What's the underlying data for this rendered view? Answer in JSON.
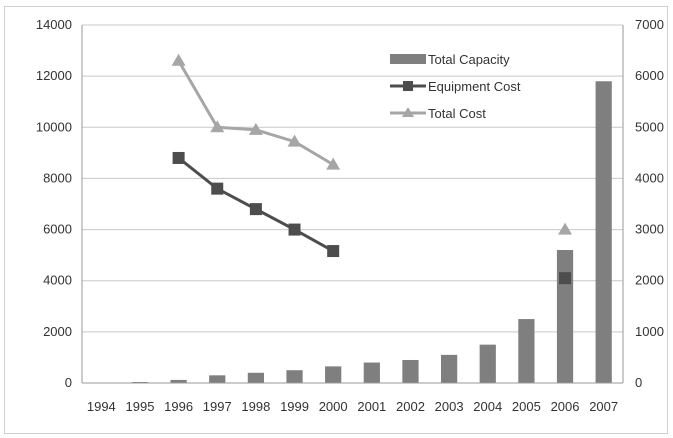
{
  "chart_data": {
    "type": "bar",
    "categories": [
      "1994",
      "1995",
      "1996",
      "1997",
      "1998",
      "1999",
      "2000",
      "2001",
      "2002",
      "2003",
      "2004",
      "2005",
      "2006",
      "2007"
    ],
    "y_left": {
      "ticks": [
        "0",
        "2000",
        "4000",
        "6000",
        "8000",
        "10000",
        "12000",
        "14000"
      ],
      "ylim": [
        0,
        14000
      ]
    },
    "y_right": {
      "ticks": [
        "0",
        "1000",
        "2000",
        "3000",
        "4000",
        "5000",
        "6000",
        "7000"
      ],
      "ylim": [
        0,
        7000
      ]
    },
    "series": [
      {
        "name": "Total Capacity",
        "kind": "bar",
        "axis": "left",
        "color": "#7f7f7f",
        "values": [
          10,
          40,
          120,
          300,
          400,
          500,
          650,
          800,
          900,
          1100,
          1500,
          2500,
          5200,
          11800
        ]
      },
      {
        "name": "Equipment Cost",
        "kind": "line",
        "axis": "right",
        "color": "#4d4d4d",
        "marker": "square",
        "values": [
          null,
          null,
          4400,
          3800,
          3400,
          3000,
          2580,
          null,
          null,
          null,
          null,
          null,
          2050,
          null
        ]
      },
      {
        "name": "Total Cost",
        "kind": "line",
        "axis": "right",
        "color": "#a6a6a6",
        "marker": "triangle",
        "values": [
          null,
          null,
          6300,
          5000,
          4950,
          4720,
          4270,
          null,
          null,
          null,
          null,
          null,
          3000,
          null
        ]
      }
    ],
    "legend": {
      "placement": "top-right",
      "entries": [
        "Total Capacity",
        "Equipment Cost",
        "Total Cost"
      ]
    },
    "grid": true
  }
}
